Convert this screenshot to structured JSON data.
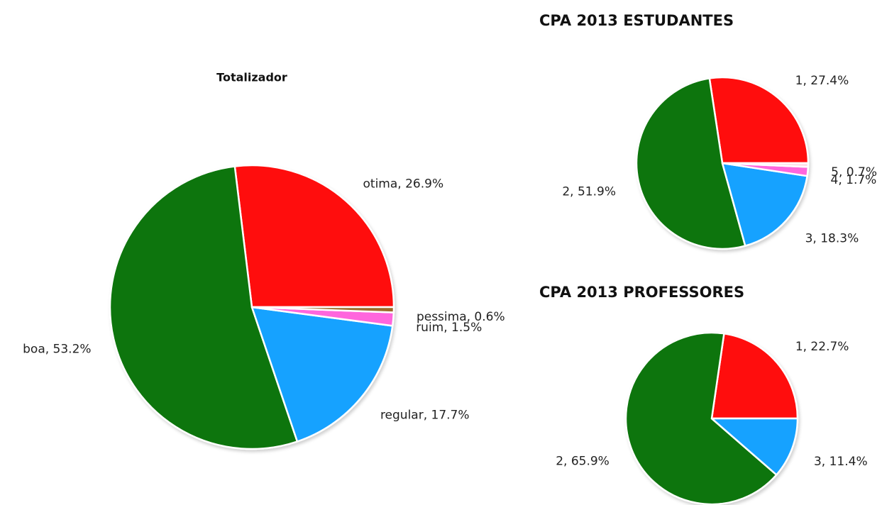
{
  "chart_data": [
    {
      "type": "pie",
      "title": "Totalizador",
      "values": [
        26.9,
        53.2,
        17.7,
        1.5,
        0.6
      ],
      "value_labels": [
        "otima, 26.9%",
        "boa, 53.2%",
        "regular, 17.7%",
        "ruim, 1.5%",
        "pessima, 0.6%"
      ],
      "colors": [
        "#ff0a0a",
        "#0b750b",
        "#19a2ff",
        "#ff66dd",
        "#9c6a2a"
      ]
    },
    {
      "type": "pie",
      "title": "CPA 2013 ESTUDANTES",
      "values": [
        27.4,
        51.9,
        18.3,
        1.7,
        0.7
      ],
      "value_labels": [
        "1, 27.4%",
        "2, 51.9%",
        "3, 18.3%",
        "4, 1.7%",
        "5, 0.7%"
      ],
      "colors": [
        "#ff0a0a",
        "#0b750b",
        "#19a2ff",
        "#ff66dd",
        "#ffdde8"
      ]
    },
    {
      "type": "pie",
      "title": "CPA 2013 PROFESSORES",
      "values": [
        22.7,
        65.9,
        11.4
      ],
      "value_labels": [
        "1, 22.7%",
        "2, 65.9%",
        "3, 11.4%"
      ],
      "colors": [
        "#ff0a0a",
        "#0b750b",
        "#19a2ff"
      ]
    }
  ]
}
